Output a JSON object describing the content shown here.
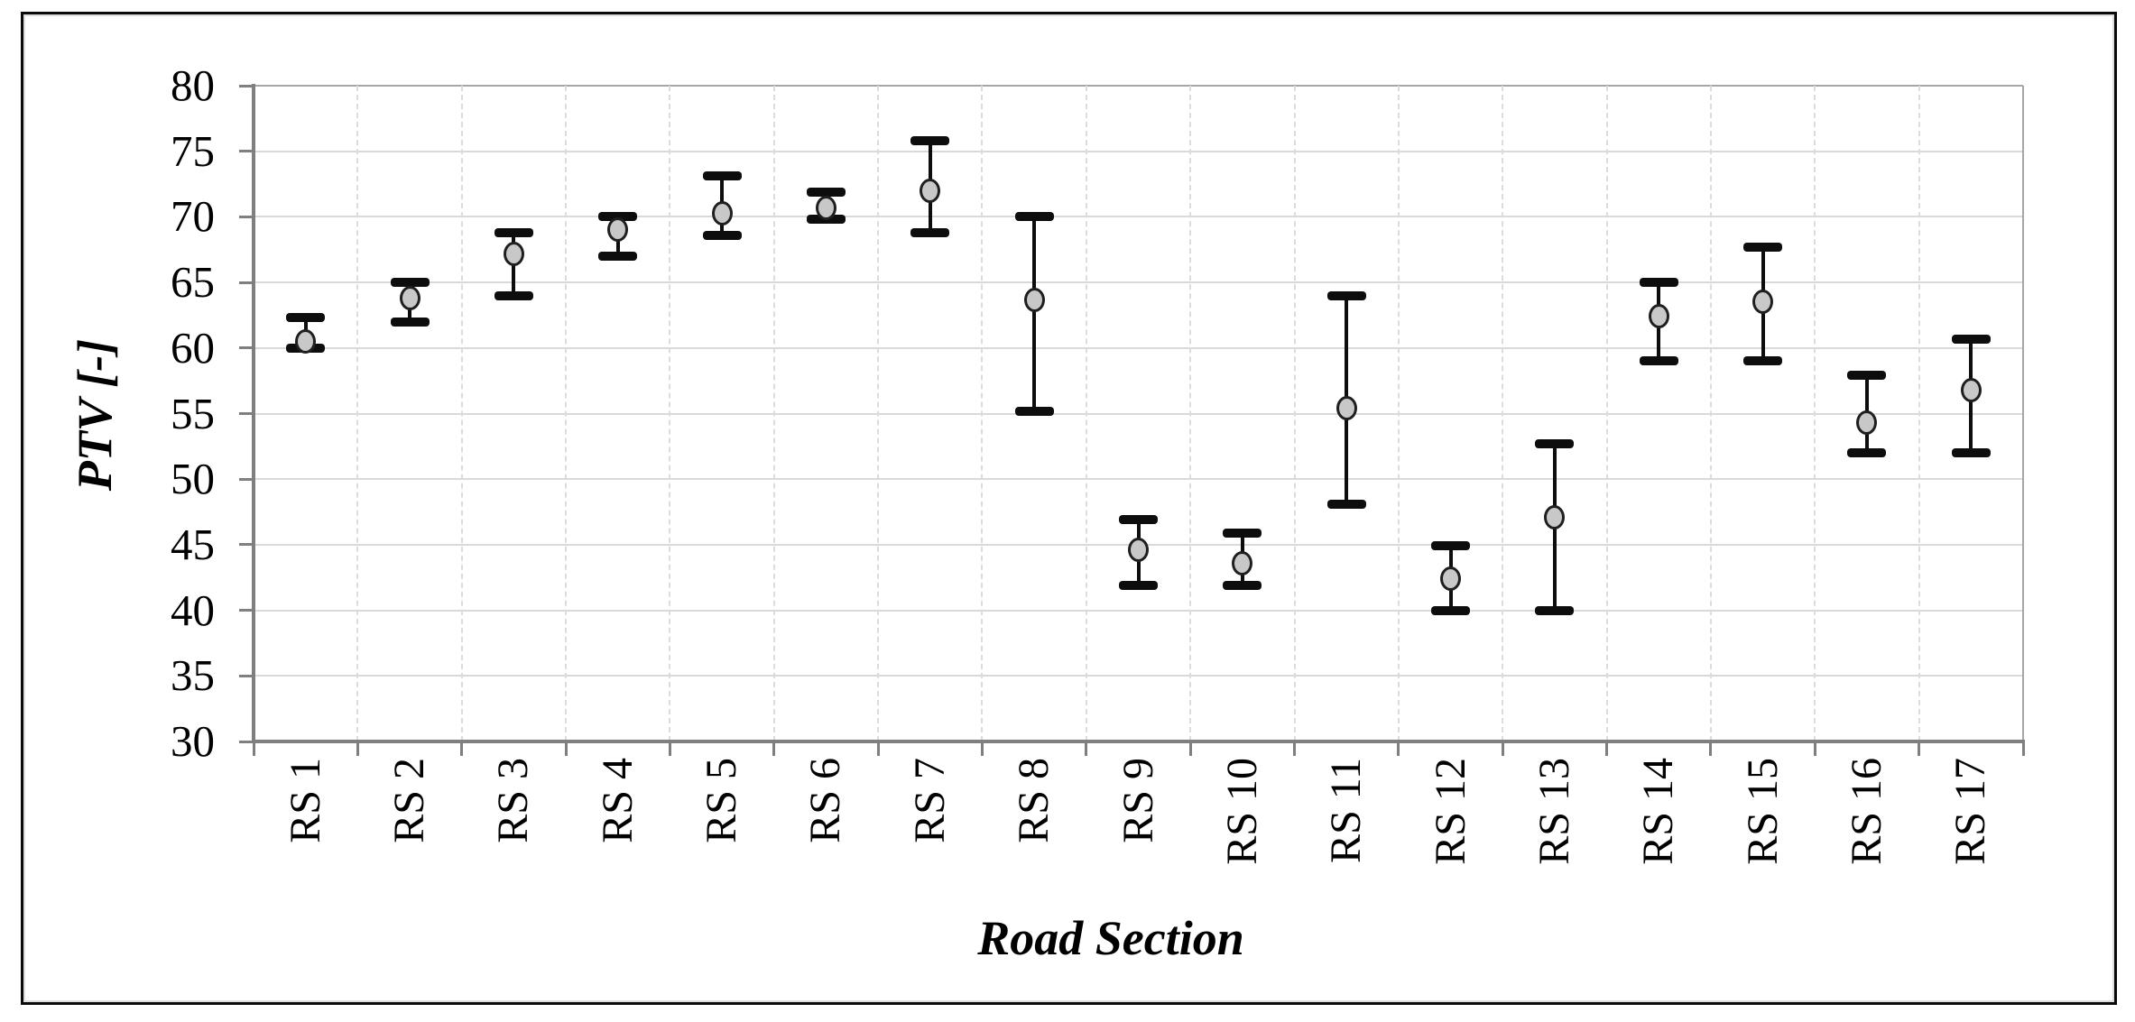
{
  "figure": {
    "background": "#ffffff",
    "border_color": "#0a0a0a"
  },
  "chart_data": {
    "type": "scatter",
    "subtype": "mean-with-error-bars",
    "title": "",
    "xlabel": "Road Section",
    "ylabel": "PTV [-]",
    "categories": [
      "RS 1",
      "RS 2",
      "RS 3",
      "RS 4",
      "RS 5",
      "RS 6",
      "RS 7",
      "RS 8",
      "RS 9",
      "RS 10",
      "RS 11",
      "RS 12",
      "RS 13",
      "RS 14",
      "RS 15",
      "RS 16",
      "RS 17"
    ],
    "series": [
      {
        "name": "PTV",
        "values": [
          60.5,
          63.8,
          67.2,
          69.0,
          70.3,
          70.7,
          72.0,
          63.7,
          44.6,
          43.6,
          55.4,
          42.4,
          47.1,
          62.4,
          63.5,
          54.3,
          56.8
        ],
        "error_low": [
          60.0,
          62.0,
          64.0,
          67.0,
          68.6,
          69.8,
          68.8,
          55.2,
          41.9,
          41.9,
          48.1,
          40.0,
          40.0,
          59.0,
          59.0,
          52.0,
          52.0
        ],
        "error_high": [
          62.3,
          65.0,
          68.8,
          70.0,
          73.1,
          71.9,
          75.8,
          70.0,
          46.9,
          45.9,
          64.0,
          44.9,
          52.7,
          65.0,
          67.7,
          57.9,
          60.7
        ]
      }
    ],
    "ylim": [
      30,
      80
    ],
    "ytick_step": 5,
    "yticks": [
      "80",
      "75",
      "70",
      "65",
      "60",
      "55",
      "50",
      "45",
      "40",
      "35",
      "30"
    ],
    "grid": {
      "horizontal": "solid",
      "vertical": "dashed"
    },
    "legend": "none",
    "marker": {
      "shape": "circle",
      "fill": "#c8c8c8",
      "stroke": "#1f1f1f"
    },
    "colors": {
      "gridline": "#d9d9d9",
      "outer_gridline": "#a6a6a6",
      "axis_line": "#7f7f7f",
      "error_bar": "#0d0d0d",
      "text": "#000000"
    }
  }
}
